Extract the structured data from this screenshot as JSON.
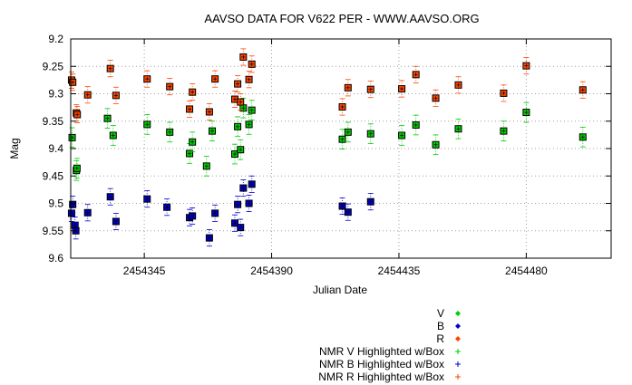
{
  "chart_data": {
    "type": "scatter",
    "title": "AAVSO DATA FOR V622 PER - WWW.AAVSO.ORG",
    "xlabel": "Julian Date",
    "ylabel": "Mag",
    "xlim": [
      2454319,
      2454510
    ],
    "ylim": [
      9.2,
      9.6
    ],
    "y_inverted": true,
    "grid": true,
    "x_ticks": [
      2454345,
      2454390,
      2454435,
      2454480
    ],
    "x_tick_labels": [
      "2454345",
      "2454390",
      "2454435",
      "2454480"
    ],
    "y_ticks": [
      9.2,
      9.25,
      9.3,
      9.35,
      9.4,
      9.45,
      9.5,
      9.55,
      9.6
    ],
    "y_tick_labels": [
      "9.2",
      "9.25",
      "9.3",
      "9.35",
      "9.4",
      "9.45",
      "9.5",
      "9.55",
      "9.6"
    ],
    "legend_position": "bottom-right",
    "legend": [
      "V",
      "B",
      "R",
      "NMR V Highlighted w/Box",
      "NMR B Highlighted w/Box",
      "NMR R Highlighted w/Box"
    ],
    "series": [
      {
        "name": "V",
        "color": "#00cc00",
        "error": 0.018,
        "points": [
          [
            2454319.5,
            9.38
          ],
          [
            2454321.0,
            9.44
          ],
          [
            2454321.2,
            9.436
          ],
          [
            2454332.0,
            9.345
          ],
          [
            2454334.0,
            9.376
          ],
          [
            2454346.0,
            9.356
          ],
          [
            2454354.0,
            9.37
          ],
          [
            2454361.0,
            9.409
          ],
          [
            2454362.0,
            9.388
          ],
          [
            2454367.0,
            9.432
          ],
          [
            2454369.0,
            9.368
          ],
          [
            2454377.0,
            9.41
          ],
          [
            2454378.0,
            9.36
          ],
          [
            2454379.0,
            9.402
          ],
          [
            2454380.0,
            9.326
          ],
          [
            2454382.0,
            9.356
          ],
          [
            2454383.0,
            9.33
          ],
          [
            2454415.0,
            9.383
          ],
          [
            2454417.0,
            9.37
          ],
          [
            2454425.0,
            9.373
          ],
          [
            2454436.0,
            9.376
          ],
          [
            2454441.0,
            9.357
          ],
          [
            2454448.0,
            9.393
          ],
          [
            2454456.0,
            9.364
          ],
          [
            2454472.0,
            9.368
          ],
          [
            2454480.0,
            9.334
          ],
          [
            2454500.0,
            9.379
          ]
        ]
      },
      {
        "name": "B",
        "color": "#0000cc",
        "error": 0.015,
        "points": [
          [
            2454319.3,
            9.518
          ],
          [
            2454319.7,
            9.502
          ],
          [
            2454320.5,
            9.54
          ],
          [
            2454320.8,
            9.55
          ],
          [
            2454325.0,
            9.517
          ],
          [
            2454333.0,
            9.488
          ],
          [
            2454335.0,
            9.533
          ],
          [
            2454346.0,
            9.492
          ],
          [
            2454353.0,
            9.507
          ],
          [
            2454361.0,
            9.526
          ],
          [
            2454362.0,
            9.523
          ],
          [
            2454368.0,
            9.563
          ],
          [
            2454370.0,
            9.518
          ],
          [
            2454377.0,
            9.536
          ],
          [
            2454378.0,
            9.502
          ],
          [
            2454379.0,
            9.544
          ],
          [
            2454380.0,
            9.472
          ],
          [
            2454382.0,
            9.5
          ],
          [
            2454383.0,
            9.465
          ],
          [
            2454415.0,
            9.505
          ],
          [
            2454417.0,
            9.516
          ],
          [
            2454425.0,
            9.497
          ]
        ]
      },
      {
        "name": "R",
        "color": "#ff4400",
        "error": 0.015,
        "points": [
          [
            2454319.3,
            9.275
          ],
          [
            2454319.7,
            9.279
          ],
          [
            2454321.0,
            9.335
          ],
          [
            2454321.3,
            9.338
          ],
          [
            2454325.0,
            9.302
          ],
          [
            2454333.0,
            9.254
          ],
          [
            2454335.0,
            9.303
          ],
          [
            2454346.0,
            9.273
          ],
          [
            2454354.0,
            9.287
          ],
          [
            2454361.0,
            9.328
          ],
          [
            2454362.0,
            9.297
          ],
          [
            2454368.0,
            9.333
          ],
          [
            2454370.0,
            9.273
          ],
          [
            2454377.0,
            9.31
          ],
          [
            2454378.0,
            9.282
          ],
          [
            2454379.0,
            9.315
          ],
          [
            2454380.0,
            9.233
          ],
          [
            2454382.0,
            9.274
          ],
          [
            2454383.0,
            9.246
          ],
          [
            2454415.0,
            9.324
          ],
          [
            2454417.0,
            9.289
          ],
          [
            2454425.0,
            9.292
          ],
          [
            2454436.0,
            9.291
          ],
          [
            2454441.0,
            9.265
          ],
          [
            2454448.0,
            9.308
          ],
          [
            2454456.0,
            9.284
          ],
          [
            2454472.0,
            9.299
          ],
          [
            2454480.0,
            9.249
          ],
          [
            2454500.0,
            9.293
          ]
        ]
      }
    ]
  }
}
